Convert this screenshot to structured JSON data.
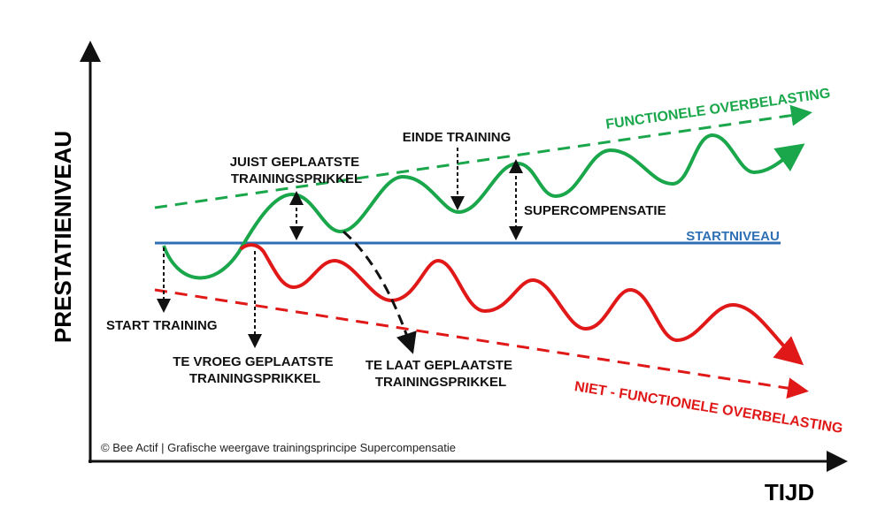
{
  "axes": {
    "y_label": "PRESTATIENIVEAU",
    "x_label": "TIJD"
  },
  "labels": {
    "functional": "FUNCTIONELE OVERBELASTING",
    "end_training": "EINDE TRAINING",
    "right_stimulus": [
      "JUIST GEPLAATSTE",
      "TRAININGSPRIKKEL"
    ],
    "supercompensation": "SUPERCOMPENSATIE",
    "start_level": "STARTNIVEAU",
    "start_training": "START TRAINING",
    "early_stimulus": [
      "TE VROEG GEPLAATSTE",
      "TRAININGSPRIKKEL"
    ],
    "late_stimulus": [
      "TE LAAT GEPLAATSTE",
      "TRAININGSPRIKKEL"
    ],
    "non_functional": "NIET - FUNCTIONELE OVERBELASTING"
  },
  "credit": "© Bee Actif | Grafische weergave trainingsprincipe Supercompensatie"
}
